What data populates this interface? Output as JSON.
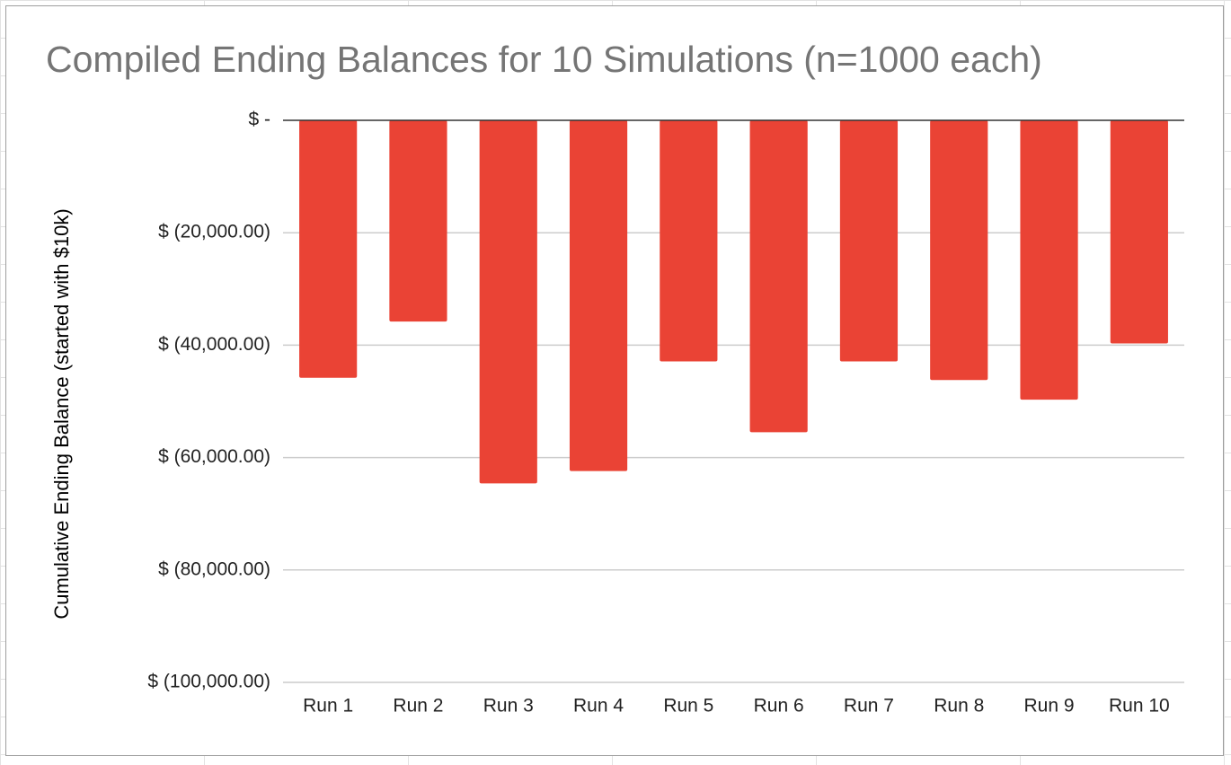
{
  "chart_data": {
    "type": "bar",
    "title": "Compiled Ending Balances for 10 Simulations (n=1000 each)",
    "xlabel": "",
    "ylabel": "Cumulative Ending Balance (started with $10k)",
    "categories": [
      "Run 1",
      "Run 2",
      "Run 3",
      "Run 4",
      "Run 5",
      "Run 6",
      "Run 7",
      "Run 8",
      "Run 9",
      "Run 10"
    ],
    "values": [
      -45800,
      -35800,
      -64600,
      -62400,
      -42900,
      -55500,
      -42900,
      -46200,
      -49700,
      -39700
    ],
    "ylim": [
      -100000,
      0
    ],
    "yticks": [
      {
        "value": 0,
        "label": "$ -"
      },
      {
        "value": -20000,
        "label": "$ (20,000.00)"
      },
      {
        "value": -40000,
        "label": "$ (40,000.00)"
      },
      {
        "value": -60000,
        "label": "$ (60,000.00)"
      },
      {
        "value": -80000,
        "label": "$ (80,000.00)"
      },
      {
        "value": -100000,
        "label": "$ (100,000.00)"
      }
    ],
    "grid": true,
    "legend": "none",
    "colors": {
      "bar": "#ea4335",
      "gridline": "#cccccc",
      "zero_line": "#333333",
      "title": "#757575"
    }
  }
}
